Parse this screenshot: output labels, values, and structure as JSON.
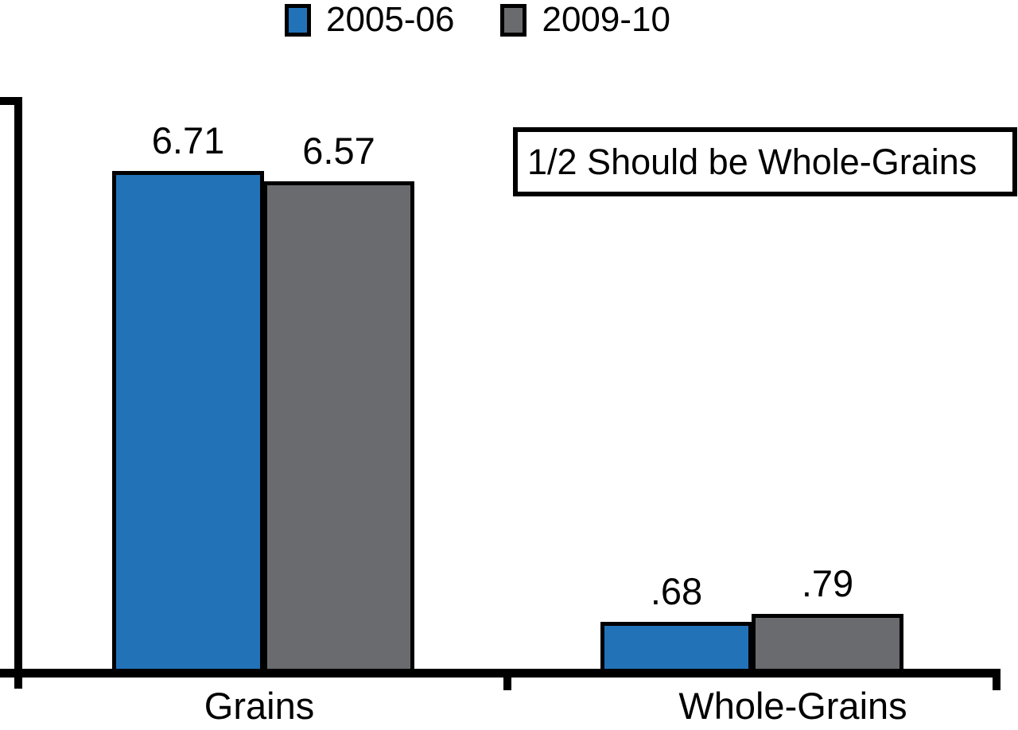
{
  "chart_data": {
    "type": "bar",
    "title": "",
    "xlabel": "",
    "ylabel": "",
    "categories": [
      "Grains",
      "Whole-Grains"
    ],
    "series": [
      {
        "name": "2005-06",
        "color": "#2272B8",
        "values": [
          6.71,
          0.68
        ],
        "display_labels": [
          "6.71",
          ".68"
        ]
      },
      {
        "name": "2009-10",
        "color": "#6A6B6E",
        "values": [
          6.57,
          0.79
        ],
        "display_labels": [
          "6.57",
          ".79"
        ]
      }
    ],
    "annotation": "1/2 Should be Whole-Grains",
    "ylim": [
      0,
      7.7
    ],
    "y_tick_labels": [],
    "grid": false,
    "legend_position": "top-center",
    "axis_color": "#000000",
    "bar_outline_color": "#000000",
    "background_color": "#FFFFFF"
  }
}
